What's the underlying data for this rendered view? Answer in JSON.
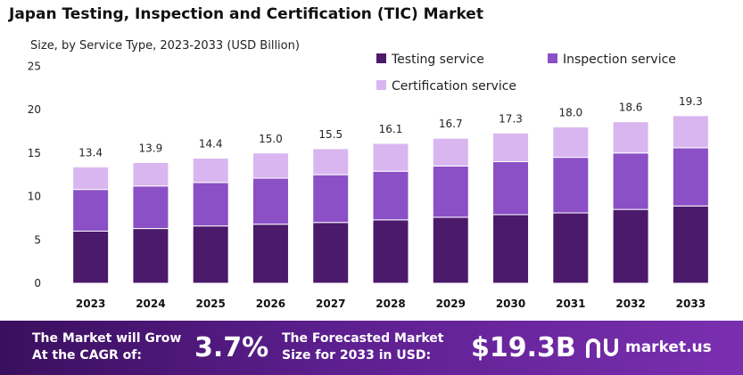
{
  "chart_data": {
    "type": "bar",
    "title": "Japan Testing, Inspection and Certification (TIC) Market",
    "subtitle": "Size, by Service Type, 2023-2033 (USD Billion)",
    "categories": [
      "2023",
      "2024",
      "2025",
      "2026",
      "2027",
      "2028",
      "2029",
      "2030",
      "2031",
      "2032",
      "2033"
    ],
    "stacked": true,
    "series": [
      {
        "name": "Testing service",
        "color": "#4b1a6b",
        "values": [
          6.0,
          6.3,
          6.6,
          6.8,
          7.0,
          7.3,
          7.6,
          7.9,
          8.1,
          8.5,
          8.9
        ]
      },
      {
        "name": "Inspection service",
        "color": "#8b4fc6",
        "values": [
          4.8,
          4.9,
          5.0,
          5.3,
          5.5,
          5.6,
          5.9,
          6.1,
          6.4,
          6.5,
          6.7
        ]
      },
      {
        "name": "Certification service",
        "color": "#d9b6ef",
        "values": [
          2.6,
          2.7,
          2.8,
          2.9,
          3.0,
          3.2,
          3.2,
          3.3,
          3.5,
          3.6,
          3.7
        ]
      }
    ],
    "totals": [
      "13.4",
      "13.9",
      "14.4",
      "15.0",
      "15.5",
      "16.1",
      "16.7",
      "17.3",
      "18.0",
      "18.6",
      "19.3"
    ],
    "ylim": [
      0,
      25
    ],
    "yticks": [
      "0",
      "5",
      "10",
      "15",
      "20",
      "25"
    ],
    "grid": false,
    "legend_position": "top-right"
  },
  "footer": {
    "cagr_label": "The Market will Grow At the CAGR of:",
    "cagr_value": "3.7%",
    "forecast_label": "The Forecasted Market Size for 2033 in USD:",
    "forecast_value": "$19.3B",
    "brand_name": "market.us"
  }
}
